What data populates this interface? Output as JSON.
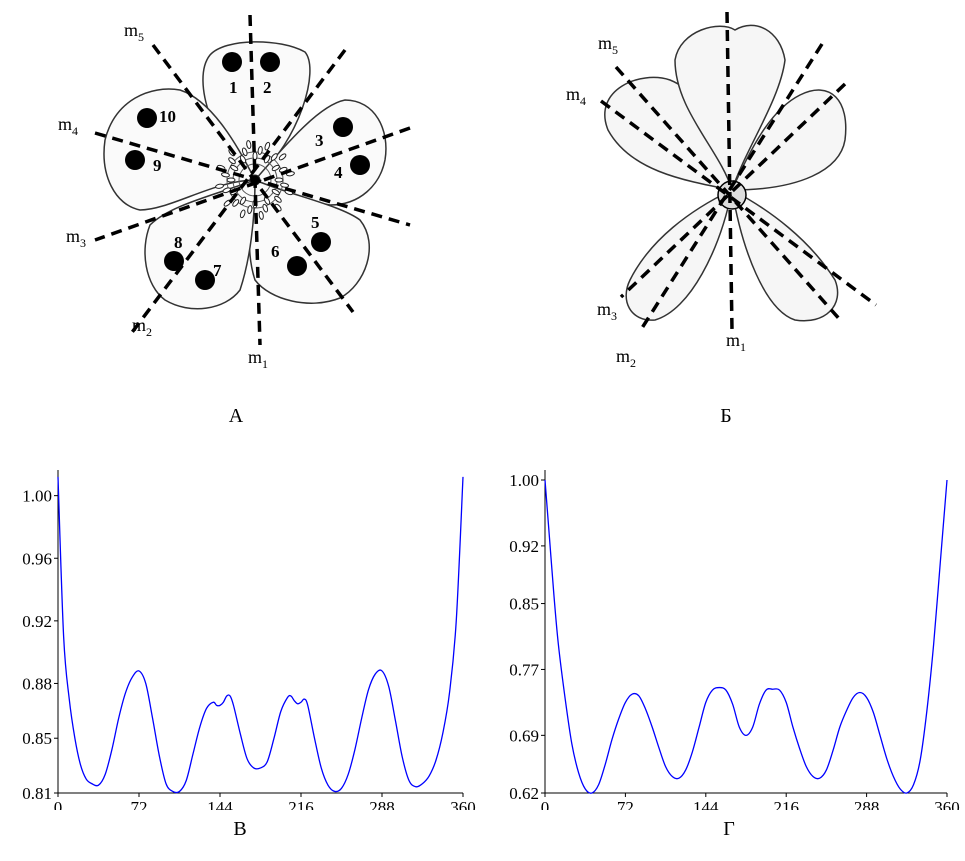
{
  "panels": {
    "a": {
      "label": "А",
      "axes": [
        {
          "main": "m",
          "sub": "1"
        },
        {
          "main": "m",
          "sub": "2"
        },
        {
          "main": "m",
          "sub": "3"
        },
        {
          "main": "m",
          "sub": "4"
        },
        {
          "main": "m",
          "sub": "5"
        }
      ],
      "markers": [
        "1",
        "2",
        "3",
        "4",
        "5",
        "6",
        "7",
        "8",
        "9",
        "10"
      ]
    },
    "b": {
      "label": "Б",
      "axes": [
        {
          "main": "m",
          "sub": "1"
        },
        {
          "main": "m",
          "sub": "2"
        },
        {
          "main": "m",
          "sub": "3"
        },
        {
          "main": "m",
          "sub": "4"
        },
        {
          "main": "m",
          "sub": "5"
        }
      ]
    },
    "v": {
      "label": "В"
    },
    "g": {
      "label": "Г"
    }
  },
  "line_color": "#0000ff",
  "chart_data": [
    {
      "type": "line",
      "panel": "В",
      "xlim": [
        0,
        360
      ],
      "ylim": [
        0.81,
        1.01
      ],
      "x_ticks": [
        "0",
        "72",
        "144",
        "216",
        "288",
        "360"
      ],
      "x_tick_values": [
        0,
        72,
        144,
        216,
        288,
        360
      ],
      "y_ticks": [
        "0.81",
        "0.85",
        "0.88",
        "0.92",
        "0.96",
        "1.00"
      ],
      "y_tick_values": [
        0.81,
        0.845,
        0.88,
        0.92,
        0.96,
        1.0
      ],
      "series": [
        {
          "x": [
            0,
            5,
            10,
            15,
            20,
            25,
            30,
            36,
            42,
            48,
            54,
            60,
            66,
            72,
            78,
            84,
            90,
            96,
            102,
            108,
            114,
            120,
            126,
            132,
            138,
            141,
            144,
            147,
            150,
            153,
            156,
            162,
            168,
            174,
            180,
            186,
            192,
            198,
            204,
            207,
            210,
            213,
            216,
            219,
            222,
            228,
            234,
            240,
            246,
            252,
            258,
            264,
            270,
            276,
            282,
            288,
            294,
            300,
            306,
            312,
            318,
            324,
            330,
            336,
            342,
            348,
            354,
            360
          ],
          "y": [
            1.012,
            0.91,
            0.87,
            0.845,
            0.828,
            0.819,
            0.816,
            0.815,
            0.822,
            0.838,
            0.858,
            0.874,
            0.884,
            0.888,
            0.88,
            0.858,
            0.834,
            0.816,
            0.811,
            0.811,
            0.818,
            0.835,
            0.852,
            0.864,
            0.868,
            0.866,
            0.866,
            0.868,
            0.872,
            0.872,
            0.866,
            0.848,
            0.832,
            0.826,
            0.826,
            0.83,
            0.845,
            0.862,
            0.871,
            0.872,
            0.869,
            0.867,
            0.868,
            0.87,
            0.866,
            0.845,
            0.826,
            0.815,
            0.811,
            0.813,
            0.822,
            0.838,
            0.858,
            0.876,
            0.886,
            0.888,
            0.878,
            0.856,
            0.833,
            0.818,
            0.814,
            0.816,
            0.821,
            0.831,
            0.848,
            0.874,
            0.92,
            1.012
          ]
        }
      ]
    },
    {
      "type": "line",
      "panel": "Г",
      "xlim": [
        0,
        360
      ],
      "ylim": [
        0.62,
        1.0
      ],
      "x_ticks": [
        "0",
        "72",
        "144",
        "216",
        "288",
        "360"
      ],
      "x_tick_values": [
        0,
        72,
        144,
        216,
        288,
        360
      ],
      "y_ticks": [
        "0.62",
        "0.69",
        "0.77",
        "0.85",
        "0.92",
        "1.00"
      ],
      "y_tick_values": [
        0.62,
        0.69,
        0.77,
        0.85,
        0.92,
        1.0
      ],
      "series": [
        {
          "x": [
            0,
            4,
            8,
            12,
            18,
            24,
            30,
            36,
            42,
            48,
            54,
            60,
            66,
            72,
            78,
            84,
            90,
            96,
            102,
            108,
            114,
            120,
            126,
            132,
            138,
            144,
            150,
            156,
            162,
            168,
            174,
            180,
            186,
            192,
            198,
            204,
            210,
            216,
            222,
            228,
            234,
            240,
            246,
            252,
            258,
            264,
            270,
            276,
            282,
            288,
            294,
            300,
            306,
            312,
            318,
            324,
            330,
            336,
            342,
            348,
            354,
            360
          ],
          "y": [
            1.0,
            0.93,
            0.86,
            0.8,
            0.735,
            0.68,
            0.645,
            0.625,
            0.62,
            0.63,
            0.655,
            0.685,
            0.71,
            0.73,
            0.74,
            0.738,
            0.722,
            0.7,
            0.675,
            0.652,
            0.64,
            0.638,
            0.648,
            0.67,
            0.7,
            0.73,
            0.745,
            0.748,
            0.745,
            0.728,
            0.7,
            0.69,
            0.7,
            0.728,
            0.745,
            0.746,
            0.745,
            0.73,
            0.7,
            0.674,
            0.652,
            0.64,
            0.638,
            0.648,
            0.672,
            0.7,
            0.72,
            0.736,
            0.742,
            0.736,
            0.718,
            0.69,
            0.662,
            0.64,
            0.625,
            0.62,
            0.63,
            0.66,
            0.72,
            0.8,
            0.9,
            1.0
          ]
        }
      ]
    }
  ]
}
